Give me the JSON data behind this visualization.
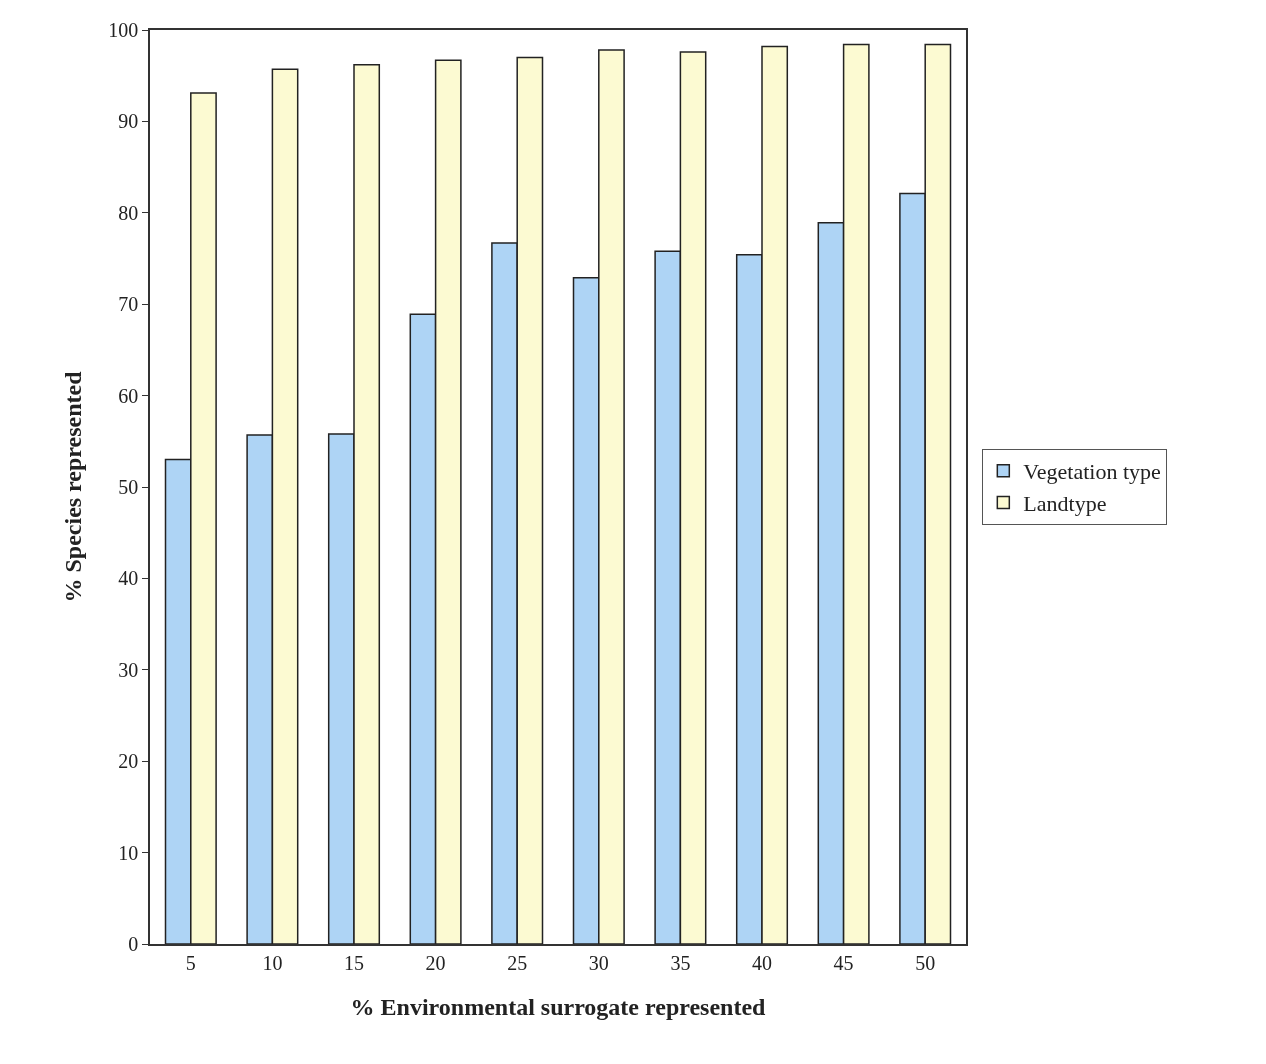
{
  "chart_data": {
    "type": "bar",
    "xlabel": "% Environmental surrogate represented",
    "ylabel": "% Species represented",
    "categories": [
      "5",
      "10",
      "15",
      "20",
      "25",
      "30",
      "35",
      "40",
      "45",
      "50"
    ],
    "series": [
      {
        "name": "Vegetation type",
        "color": "#aed4f5",
        "values": [
          53,
          55.7,
          55.8,
          68.9,
          76.7,
          72.9,
          75.8,
          75.4,
          78.9,
          82.1
        ]
      },
      {
        "name": "Landtype",
        "color": "#fcfad2",
        "values": [
          93.1,
          95.7,
          96.2,
          96.7,
          97,
          97.8,
          97.6,
          98.2,
          98.4,
          98.4
        ]
      }
    ],
    "ylim": [
      0,
      100
    ],
    "yticks": [
      0,
      10,
      20,
      30,
      40,
      50,
      60,
      70,
      80,
      90,
      100
    ],
    "grid": false,
    "legend": "right"
  }
}
